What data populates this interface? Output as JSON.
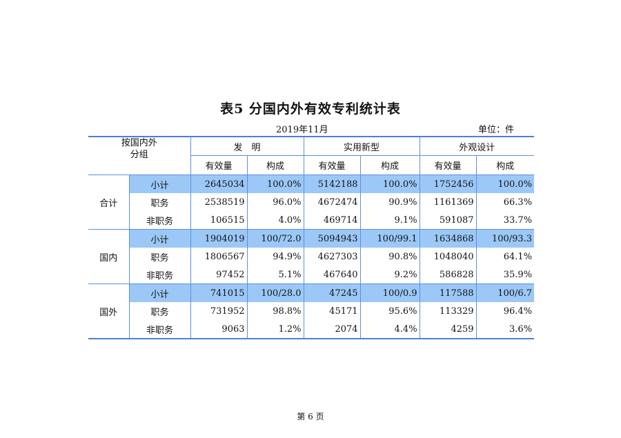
{
  "title": "表5  分国内外有效专利统计表",
  "date": "2019年11月",
  "unit": "单位：件",
  "header": {
    "corner_line1": "按国内外",
    "corner_line2": "分组",
    "groups": [
      "发　明",
      "实用新型",
      "外观设计"
    ],
    "subcols": [
      "有效量",
      "构成",
      "有效量",
      "构成",
      "有效量",
      "构成"
    ]
  },
  "groups": [
    {
      "name": "合计",
      "rows": [
        {
          "label": "小计",
          "values": [
            "2645034",
            "100.0%",
            "5142188",
            "100.0%",
            "1752456",
            "100.0%"
          ]
        },
        {
          "label": "职务",
          "values": [
            "2538519",
            "96.0%",
            "4672474",
            "90.9%",
            "1161369",
            "66.3%"
          ]
        },
        {
          "label": "非职务",
          "values": [
            "106515",
            "4.0%",
            "469714",
            "9.1%",
            "591087",
            "33.7%"
          ]
        }
      ]
    },
    {
      "name": "国内",
      "rows": [
        {
          "label": "小计",
          "values": [
            "1904019",
            "100/72.0",
            "5094943",
            "100/99.1",
            "1634868",
            "100/93.3"
          ]
        },
        {
          "label": "职务",
          "values": [
            "1806567",
            "94.9%",
            "4627303",
            "90.8%",
            "1048040",
            "64.1%"
          ]
        },
        {
          "label": "非职务",
          "values": [
            "97452",
            "5.1%",
            "467640",
            "9.2%",
            "586828",
            "35.9%"
          ]
        }
      ]
    },
    {
      "name": "国外",
      "rows": [
        {
          "label": "小计",
          "values": [
            "741015",
            "100/28.0",
            "47245",
            "100/0.9",
            "117588",
            "100/6.7"
          ]
        },
        {
          "label": "职务",
          "values": [
            "731952",
            "98.8%",
            "45171",
            "95.6%",
            "113329",
            "96.4%"
          ]
        },
        {
          "label": "非职务",
          "values": [
            "9063",
            "1.2%",
            "2074",
            "4.4%",
            "4259",
            "3.6%"
          ]
        }
      ]
    }
  ],
  "footer": "第 6 页",
  "colors": {
    "rule": "#4a7fd4",
    "highlight": "#9cc8f8"
  }
}
